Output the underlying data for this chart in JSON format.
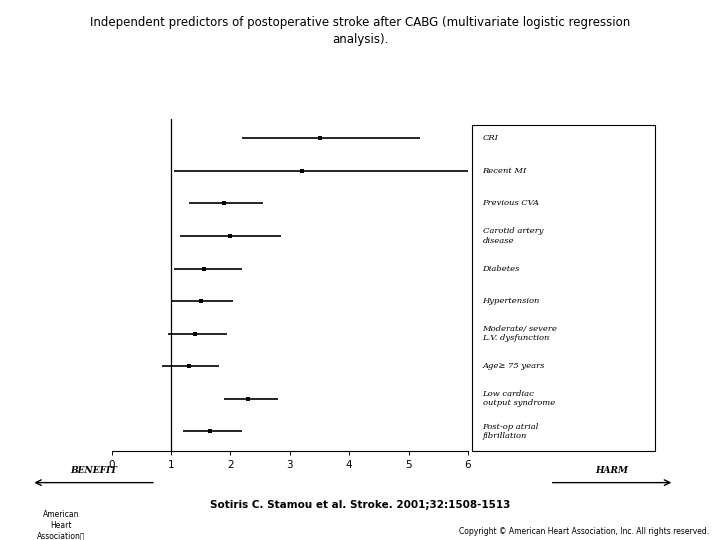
{
  "title": "Independent predictors of postoperative stroke after CABG (multivariate logistic regression\nanalysis).",
  "citation": "Sotiris C. Stamou et al. Stroke. 2001;32:1508-1513",
  "copyright": "Copyright © American Heart Association, Inc. All rights reserved.",
  "labels": [
    "CRI",
    "Recent MI",
    "Previous CVA",
    "Carotid artery\ndisease",
    "Diabetes",
    "Hypertension",
    "Moderate/ severe\nL.V. dysfunction",
    "Age≥ 75 years",
    "Low cardiac\noutput syndrome",
    "Post-op atrial\nfibrillation"
  ],
  "or": [
    3.5,
    3.2,
    1.9,
    2.0,
    1.55,
    1.5,
    1.4,
    1.3,
    2.3,
    1.65
  ],
  "ci_low": [
    2.2,
    1.05,
    1.3,
    1.15,
    1.05,
    1.0,
    0.95,
    0.85,
    1.9,
    1.2
  ],
  "ci_high": [
    5.2,
    6.0,
    2.55,
    2.85,
    2.2,
    2.05,
    1.95,
    1.8,
    2.8,
    2.2
  ],
  "xlim": [
    0,
    6
  ],
  "xticks": [
    0,
    1,
    2,
    3,
    4,
    5,
    6
  ],
  "benefit_label": "BENEFIT",
  "harm_label": "HARM",
  "ref_line": 1,
  "background_color": "#ffffff"
}
